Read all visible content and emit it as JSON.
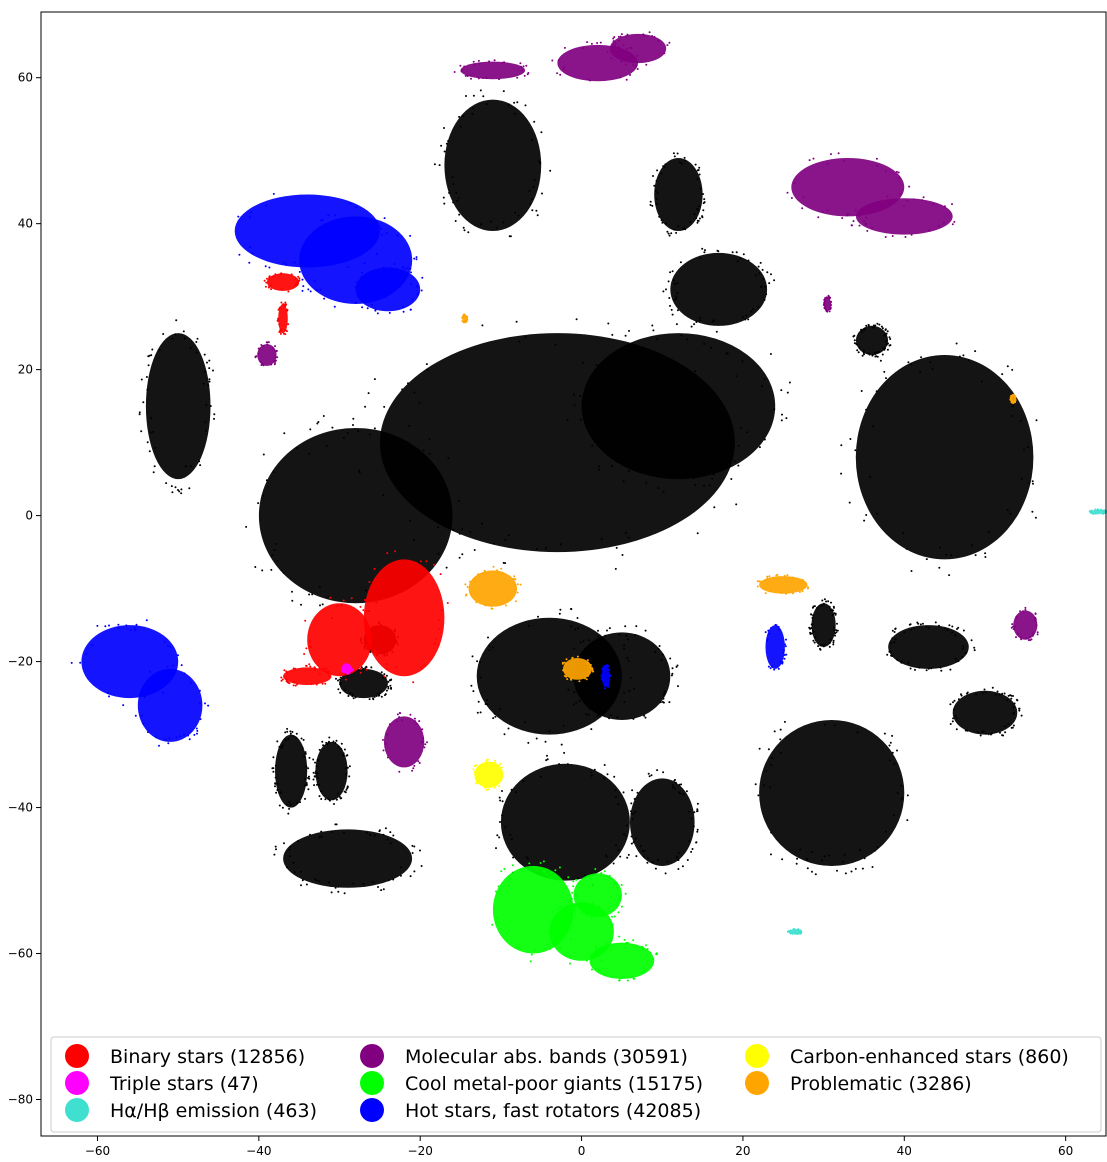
{
  "chart_data": {
    "type": "scatter",
    "title": "",
    "xlabel": "",
    "ylabel": "",
    "xlim": [
      -67,
      65
    ],
    "ylim": [
      -85,
      69
    ],
    "xticks": [
      -60,
      -40,
      -20,
      0,
      20,
      40,
      60
    ],
    "yticks": [
      -80,
      -60,
      -40,
      -20,
      0,
      20,
      40,
      60
    ],
    "xtick_labels": [
      "−60",
      "−40",
      "−20",
      "0",
      "20",
      "40",
      "60"
    ],
    "ytick_labels": [
      "−80",
      "−60",
      "−40",
      "−20",
      "0",
      "20",
      "40",
      "60"
    ],
    "grid": false,
    "legend_position": "bottom",
    "legend_columns": 3,
    "background_color": "#000000",
    "series": [
      {
        "name": "Binary stars (12856)",
        "color": "#ff0000",
        "clusters": [
          {
            "cx": -22,
            "cy": -14,
            "rx": 5,
            "ry": 8
          },
          {
            "cx": -30,
            "cy": -17,
            "rx": 4,
            "ry": 5
          },
          {
            "cx": -34,
            "cy": -22,
            "rx": 3,
            "ry": 1.2
          },
          {
            "cx": -37,
            "cy": 32,
            "rx": 2,
            "ry": 1.2
          },
          {
            "cx": -37,
            "cy": 27,
            "rx": 0.6,
            "ry": 2
          }
        ]
      },
      {
        "name": "Triple stars (47)",
        "color": "#ff00ff",
        "clusters": [
          {
            "cx": -29,
            "cy": -21,
            "rx": 0.6,
            "ry": 0.6
          }
        ]
      },
      {
        "name": "Hα/Hβ emission (463)",
        "color": "#40e0d0",
        "clusters": [
          {
            "cx": 64,
            "cy": 0.5,
            "rx": 0.9,
            "ry": 0.3
          },
          {
            "cx": 26.5,
            "cy": -57,
            "rx": 0.8,
            "ry": 0.3
          }
        ]
      },
      {
        "name": "Molecular abs. bands (30591)",
        "color": "#800080",
        "clusters": [
          {
            "cx": 2,
            "cy": 62,
            "rx": 5,
            "ry": 2.5
          },
          {
            "cx": 7,
            "cy": 64,
            "rx": 3.5,
            "ry": 2
          },
          {
            "cx": -11,
            "cy": 61,
            "rx": 4,
            "ry": 1.2
          },
          {
            "cx": 33,
            "cy": 45,
            "rx": 7,
            "ry": 4
          },
          {
            "cx": 40,
            "cy": 41,
            "rx": 6,
            "ry": 2.5
          },
          {
            "cx": -22,
            "cy": -31,
            "rx": 2.5,
            "ry": 3.5
          },
          {
            "cx": -39,
            "cy": 22,
            "rx": 1.2,
            "ry": 1.5
          },
          {
            "cx": 55,
            "cy": -15,
            "rx": 1.5,
            "ry": 2
          },
          {
            "cx": 30.5,
            "cy": 29,
            "rx": 0.4,
            "ry": 1
          }
        ]
      },
      {
        "name": "Cool metal-poor giants (15175)",
        "color": "#00ff00",
        "clusters": [
          {
            "cx": -6,
            "cy": -54,
            "rx": 5,
            "ry": 6
          },
          {
            "cx": 0,
            "cy": -57,
            "rx": 4,
            "ry": 4
          },
          {
            "cx": 5,
            "cy": -61,
            "rx": 4,
            "ry": 2.5
          },
          {
            "cx": 2,
            "cy": -52,
            "rx": 3,
            "ry": 3
          }
        ]
      },
      {
        "name": "Hot stars, fast rotators (42085)",
        "color": "#0000ff",
        "clusters": [
          {
            "cx": -34,
            "cy": 39,
            "rx": 9,
            "ry": 5
          },
          {
            "cx": -28,
            "cy": 35,
            "rx": 7,
            "ry": 6
          },
          {
            "cx": -24,
            "cy": 31,
            "rx": 4,
            "ry": 3
          },
          {
            "cx": -56,
            "cy": -20,
            "rx": 6,
            "ry": 5
          },
          {
            "cx": -51,
            "cy": -26,
            "rx": 4,
            "ry": 5
          },
          {
            "cx": 24,
            "cy": -18,
            "rx": 1.2,
            "ry": 3
          },
          {
            "cx": 3,
            "cy": -22,
            "rx": 0.5,
            "ry": 1.5
          }
        ]
      },
      {
        "name": "Carbon-enhanced stars (860)",
        "color": "#ffff00",
        "clusters": [
          {
            "cx": -11.5,
            "cy": -35.5,
            "rx": 1.8,
            "ry": 1.8
          }
        ]
      },
      {
        "name": "Problematic (3286)",
        "color": "#ffa500",
        "clusters": [
          {
            "cx": -11,
            "cy": -10,
            "rx": 3,
            "ry": 2.5
          },
          {
            "cx": 25,
            "cy": -9.5,
            "rx": 3,
            "ry": 1.2
          },
          {
            "cx": -0.5,
            "cy": -21,
            "rx": 1.8,
            "ry": 1.5
          },
          {
            "cx": 53.5,
            "cy": 16,
            "rx": 0.3,
            "ry": 0.5
          },
          {
            "cx": -14.5,
            "cy": 27,
            "rx": 0.3,
            "ry": 0.5
          }
        ]
      }
    ],
    "background_clusters": [
      {
        "cx": -3,
        "cy": 10,
        "rx": 22,
        "ry": 15
      },
      {
        "cx": -28,
        "cy": 0,
        "rx": 12,
        "ry": 12
      },
      {
        "cx": 12,
        "cy": 15,
        "rx": 12,
        "ry": 10
      },
      {
        "cx": 45,
        "cy": 8,
        "rx": 11,
        "ry": 14
      },
      {
        "cx": -11,
        "cy": 48,
        "rx": 6,
        "ry": 9
      },
      {
        "cx": 12,
        "cy": 44,
        "rx": 3,
        "ry": 5
      },
      {
        "cx": 17,
        "cy": 31,
        "rx": 6,
        "ry": 5
      },
      {
        "cx": -4,
        "cy": -22,
        "rx": 9,
        "ry": 8
      },
      {
        "cx": 5,
        "cy": -22,
        "rx": 6,
        "ry": 6
      },
      {
        "cx": -2,
        "cy": -42,
        "rx": 8,
        "ry": 8
      },
      {
        "cx": 10,
        "cy": -42,
        "rx": 4,
        "ry": 6
      },
      {
        "cx": 31,
        "cy": -38,
        "rx": 9,
        "ry": 10
      },
      {
        "cx": 43,
        "cy": -18,
        "rx": 5,
        "ry": 3
      },
      {
        "cx": -29,
        "cy": -47,
        "rx": 8,
        "ry": 4
      },
      {
        "cx": -36,
        "cy": -35,
        "rx": 2,
        "ry": 5
      },
      {
        "cx": -31,
        "cy": -35,
        "rx": 2,
        "ry": 4
      },
      {
        "cx": 50,
        "cy": -27,
        "rx": 4,
        "ry": 3
      },
      {
        "cx": -50,
        "cy": 15,
        "rx": 4,
        "ry": 10
      },
      {
        "cx": 36,
        "cy": 24,
        "rx": 2,
        "ry": 2
      },
      {
        "cx": 30,
        "cy": -15,
        "rx": 1.5,
        "ry": 3
      },
      {
        "cx": -25,
        "cy": -17,
        "rx": 2,
        "ry": 2
      },
      {
        "cx": -27,
        "cy": -23,
        "rx": 3,
        "ry": 2
      }
    ]
  }
}
